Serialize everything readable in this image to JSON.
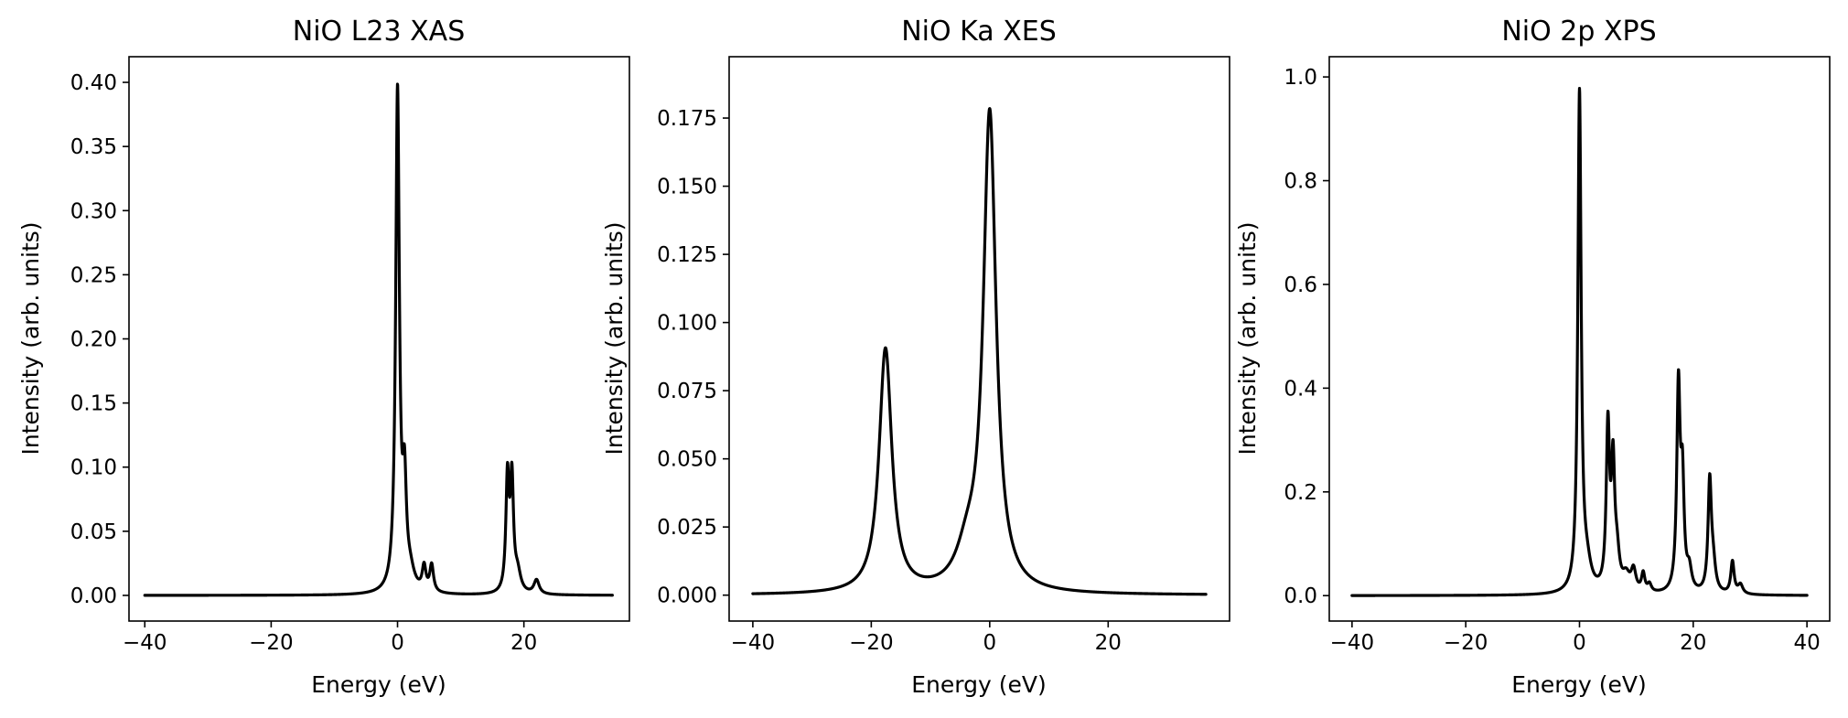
{
  "chart_data": [
    {
      "type": "line",
      "title": "NiO L23 XAS",
      "xlabel": "Energy (eV)",
      "ylabel": "Intensity (arb. units)",
      "xlim": [
        -42.5,
        36.7
      ],
      "ylim": [
        -0.02,
        0.42
      ],
      "xticks": [
        -40,
        -20,
        0,
        20
      ],
      "xtick_labels": [
        "−40",
        "−20",
        "0",
        "20"
      ],
      "yticks": [
        0.0,
        0.05,
        0.1,
        0.15,
        0.2,
        0.25,
        0.3,
        0.35,
        0.4
      ],
      "ytick_labels": [
        "0.00",
        "0.05",
        "0.10",
        "0.15",
        "0.20",
        "0.25",
        "0.30",
        "0.35",
        "0.40"
      ],
      "x_range": [
        -40,
        34
      ],
      "baseline": 0,
      "peaks": [
        {
          "center": 0.0,
          "height": 0.39,
          "width": 0.35
        },
        {
          "center": 1.1,
          "height": 0.075,
          "width": 0.35
        },
        {
          "center": 2.0,
          "height": 0.013,
          "width": 0.8
        },
        {
          "center": 4.2,
          "height": 0.019,
          "width": 0.35
        },
        {
          "center": 5.4,
          "height": 0.021,
          "width": 0.35
        },
        {
          "center": 17.4,
          "height": 0.088,
          "width": 0.3
        },
        {
          "center": 18.1,
          "height": 0.085,
          "width": 0.3
        },
        {
          "center": 19.0,
          "height": 0.015,
          "width": 0.6
        },
        {
          "center": 22.0,
          "height": 0.011,
          "width": 0.5
        }
      ]
    },
    {
      "type": "line",
      "title": "NiO Ka XES",
      "xlabel": "Energy (eV)",
      "ylabel": "Intensity (arb. units)",
      "xlim": [
        -44.0,
        40.5
      ],
      "ylim": [
        -0.0095,
        0.1975
      ],
      "xticks": [
        -40,
        -20,
        0,
        20
      ],
      "xtick_labels": [
        "−40",
        "−20",
        "0",
        "20"
      ],
      "yticks": [
        0.0,
        0.025,
        0.05,
        0.075,
        0.1,
        0.125,
        0.15,
        0.175
      ],
      "ytick_labels": [
        "0.000",
        "0.025",
        "0.050",
        "0.075",
        "0.100",
        "0.125",
        "0.150",
        "0.175"
      ],
      "x_range": [
        -40,
        36.5
      ],
      "baseline": 0,
      "peaks": [
        {
          "center": -17.6,
          "height": 0.0895,
          "width": 1.3
        },
        {
          "center": 0.0,
          "height": 0.175,
          "width": 1.3
        },
        {
          "center": -3.8,
          "height": 0.012,
          "width": 2.2
        }
      ]
    },
    {
      "type": "line",
      "title": "NiO 2p XPS",
      "xlabel": "Energy (eV)",
      "ylabel": "Intensity (arb. units)",
      "xlim": [
        -44.0,
        44.0
      ],
      "ylim": [
        -0.049,
        1.039
      ],
      "xticks": [
        -40,
        -20,
        0,
        20,
        40
      ],
      "xtick_labels": [
        "−40",
        "−20",
        "0",
        "20",
        "40"
      ],
      "yticks": [
        0.0,
        0.2,
        0.4,
        0.6,
        0.8,
        1.0
      ],
      "ytick_labels": [
        "0.0",
        "0.2",
        "0.4",
        "0.6",
        "0.8",
        "1.0"
      ],
      "x_range": [
        -40,
        40
      ],
      "baseline": 0,
      "peaks": [
        {
          "center": 0.0,
          "height": 0.96,
          "width": 0.35
        },
        {
          "center": 1.3,
          "height": 0.045,
          "width": 0.9
        },
        {
          "center": 5.0,
          "height": 0.31,
          "width": 0.35
        },
        {
          "center": 5.9,
          "height": 0.23,
          "width": 0.35
        },
        {
          "center": 6.6,
          "height": 0.06,
          "width": 0.5
        },
        {
          "center": 8.2,
          "height": 0.03,
          "width": 0.8
        },
        {
          "center": 9.5,
          "height": 0.04,
          "width": 0.5
        },
        {
          "center": 11.2,
          "height": 0.035,
          "width": 0.35
        },
        {
          "center": 12.3,
          "height": 0.015,
          "width": 0.4
        },
        {
          "center": 17.4,
          "height": 0.39,
          "width": 0.35
        },
        {
          "center": 18.1,
          "height": 0.2,
          "width": 0.35
        },
        {
          "center": 19.3,
          "height": 0.04,
          "width": 0.5
        },
        {
          "center": 22.9,
          "height": 0.21,
          "width": 0.35
        },
        {
          "center": 23.5,
          "height": 0.05,
          "width": 0.5
        },
        {
          "center": 26.9,
          "height": 0.062,
          "width": 0.35
        },
        {
          "center": 28.3,
          "height": 0.018,
          "width": 0.5
        }
      ]
    }
  ]
}
